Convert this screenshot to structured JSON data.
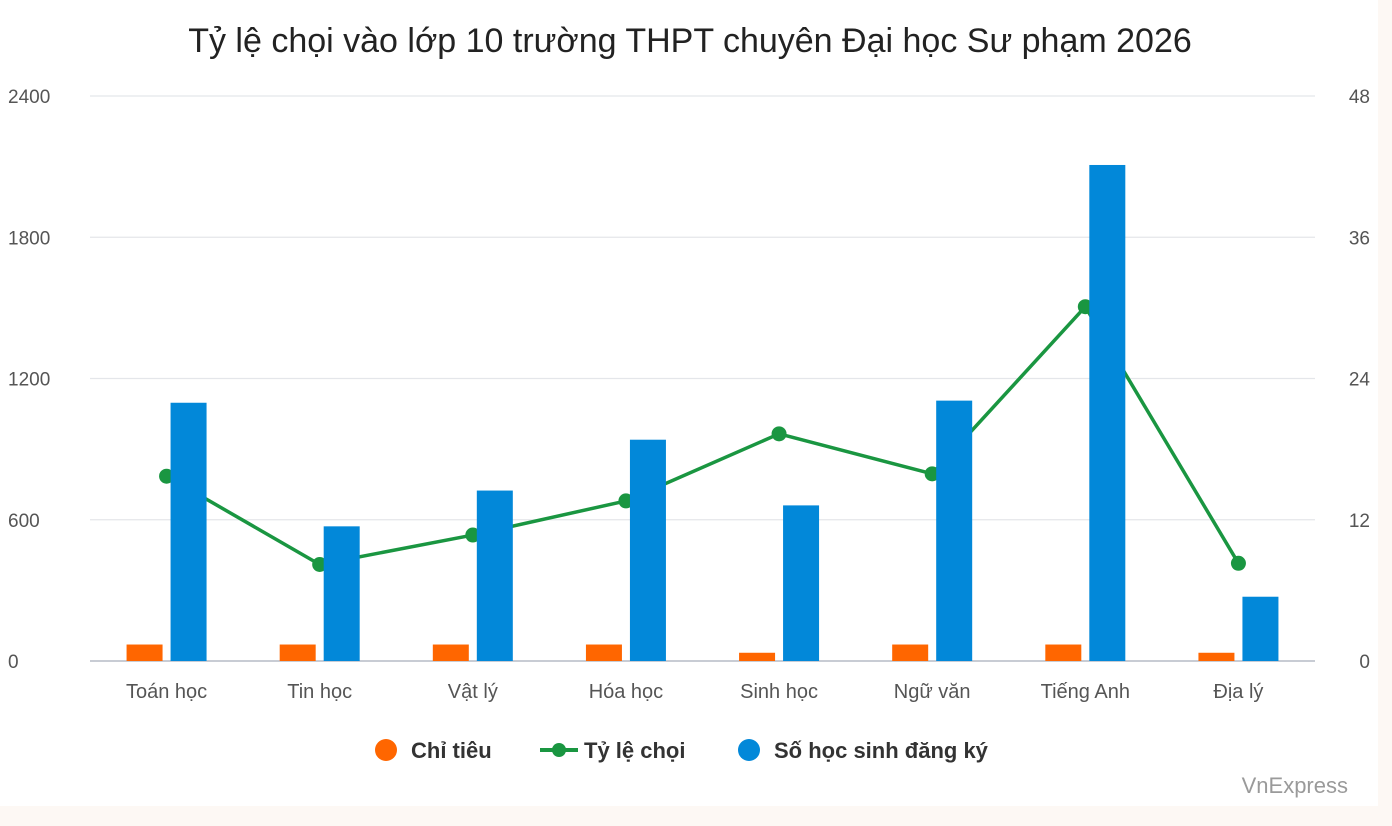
{
  "chart_data": {
    "type": "bar",
    "title": "Tỷ lệ chọi vào lớp 10 trường THPT chuyên Đại học Sư phạm 2026",
    "categories": [
      "Toán học",
      "Tin học",
      "Vật lý",
      "Hóa học",
      "Sinh học",
      "Ngữ văn",
      "Tiếng Anh",
      "Địa lý"
    ],
    "series": [
      {
        "name": "Chỉ tiêu",
        "kind": "bar",
        "axis": "left",
        "color": "#ff6600",
        "values": [
          70,
          70,
          70,
          70,
          35,
          70,
          70,
          35
        ]
      },
      {
        "name": "Tỷ lệ chọi",
        "kind": "line",
        "axis": "right",
        "color": "#1a9641",
        "values": [
          15.7,
          8.2,
          10.7,
          13.6,
          19.3,
          15.9,
          30.1,
          8.3
        ]
      },
      {
        "name": "Số học sinh đăng ký",
        "kind": "bar",
        "axis": "left",
        "color": "#0288d9",
        "values": [
          1097,
          572,
          724,
          940,
          661,
          1106,
          2107,
          273
        ]
      }
    ],
    "y_left": {
      "ticks": [
        "0",
        "600",
        "1200",
        "1800",
        "2400"
      ],
      "ylim": [
        0,
        2400
      ]
    },
    "y_right": {
      "ticks": [
        "0",
        "12",
        "24",
        "36",
        "48"
      ],
      "ylim": [
        0,
        48
      ]
    },
    "grid": true,
    "legend_position": "bottom"
  },
  "source_label": "VnExpress"
}
